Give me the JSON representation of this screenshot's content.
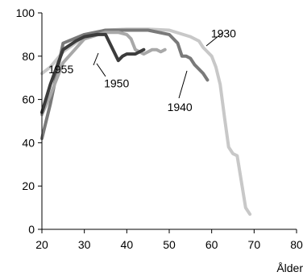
{
  "chart_data": {
    "type": "line",
    "title": "",
    "xlabel": "Ålder",
    "ylabel": "",
    "xlim": [
      20,
      80
    ],
    "ylim": [
      0,
      100
    ],
    "xticks": [
      "20",
      "30",
      "40",
      "50",
      "60",
      "70",
      "80"
    ],
    "yticks": [
      "0",
      "20",
      "40",
      "60",
      "80",
      "100"
    ],
    "grid": false,
    "series": [
      {
        "name": "1930",
        "color": "#c8c8c8",
        "x": [
          20,
          22,
          25,
          30,
          35,
          40,
          45,
          50,
          55,
          57,
          58,
          60,
          61,
          62,
          63,
          64,
          65,
          66,
          68,
          69
        ],
        "y": [
          72,
          75,
          82,
          89,
          92,
          92.5,
          92.5,
          92,
          89,
          87,
          84,
          80,
          75,
          67,
          52,
          38,
          35,
          34,
          10,
          7
        ]
      },
      {
        "name": "1940",
        "color": "#7a7a7a",
        "x": [
          20,
          22,
          25,
          30,
          35,
          40,
          45,
          50,
          52,
          53,
          54,
          55,
          56,
          57,
          58,
          59
        ],
        "y": [
          42,
          58,
          86,
          90,
          92,
          92,
          92,
          90,
          86,
          80,
          80,
          79,
          76,
          74,
          72,
          69
        ]
      },
      {
        "name": "1950",
        "color": "#a8a8a8",
        "x": [
          20,
          22,
          25,
          30,
          35,
          38,
          40,
          41,
          42,
          44,
          45,
          46,
          47,
          48,
          49
        ],
        "y": [
          53,
          62,
          77,
          88,
          91,
          91,
          90,
          88,
          83,
          81,
          82,
          83,
          83,
          82,
          83
        ]
      },
      {
        "name": "1955",
        "color": "#3c3c3c",
        "x": [
          20,
          22,
          25,
          28,
          30,
          33,
          35,
          36,
          37,
          38,
          39,
          40,
          41,
          42,
          43,
          44
        ],
        "y": [
          54,
          67,
          83,
          87,
          89,
          90,
          90,
          86,
          82,
          78,
          80,
          81,
          81,
          81,
          82,
          83
        ]
      }
    ],
    "annotations": [
      {
        "text": "1930",
        "x": 62.8,
        "y": 90.5
      },
      {
        "text": "1940",
        "x": 52.5,
        "y": 56.5
      },
      {
        "text": "1950",
        "x": 37.6,
        "y": 67.5
      },
      {
        "text": "1955",
        "x": 24.5,
        "y": 74
      }
    ]
  }
}
